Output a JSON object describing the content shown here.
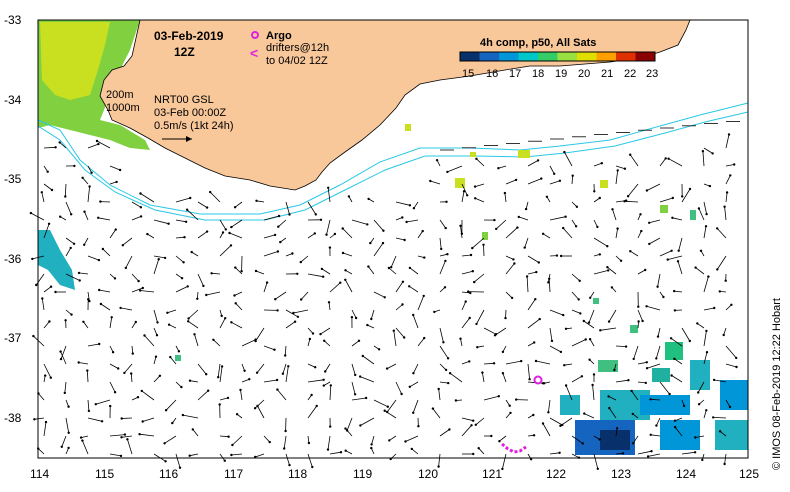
{
  "header": {
    "date": "03-Feb-2019",
    "time": "12Z",
    "argo_label": "Argo",
    "drifters_line1": "drifters@12h",
    "drifters_line2": "to 04/02 12Z",
    "drifter_marker": "<"
  },
  "legend": {
    "title": "4h comp, p50, All Sats",
    "ticks": [
      "15",
      "16",
      "17",
      "18",
      "19",
      "20",
      "21",
      "22",
      "23"
    ],
    "colors": [
      "#08306b",
      "#1565c0",
      "#0096d8",
      "#00c8c8",
      "#33cc66",
      "#99e040",
      "#e0e000",
      "#ffa000",
      "#e03000",
      "#8b0000"
    ]
  },
  "annotations": {
    "isobath_200": "200m",
    "isobath_1000": "1000m",
    "source": "NRT00 GSL",
    "source_time": "03-Feb 00:00Z",
    "scale": "0.5m/s (1kt 24h)"
  },
  "axes": {
    "y_ticks": [
      "-33",
      "-34",
      "-35",
      "-36",
      "-37",
      "-38"
    ],
    "x_ticks": [
      "114",
      "115",
      "116",
      "117",
      "118",
      "119",
      "120",
      "121",
      "122",
      "123",
      "124",
      "125"
    ]
  },
  "credit": "© IMOS 08-Feb-2019 12:22 Hobart",
  "colors": {
    "land": "#f8c79a",
    "coast": "#000000",
    "isobath": "#28c8e6",
    "argo": "#e020e0"
  }
}
